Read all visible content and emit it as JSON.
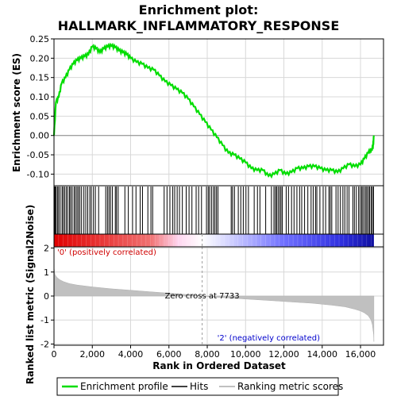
{
  "chart_data": {
    "type": "line",
    "title_line1": "Enrichment plot:",
    "title_line2": "HALLMARK_INFLAMMATORY_RESPONSE",
    "xlabel": "Rank in Ordered Dataset",
    "x_range": [
      0,
      17200
    ],
    "x_ticks": [
      0,
      2000,
      4000,
      6000,
      8000,
      10000,
      12000,
      14000,
      16000
    ],
    "x_tick_labels": [
      "0",
      "2,000",
      "4,000",
      "6,000",
      "8,000",
      "10,000",
      "12,000",
      "14,000",
      "16,000"
    ],
    "n_genes": 16700,
    "grid": true,
    "es_panel": {
      "ylabel": "Enrichment score (ES)",
      "ylim": [
        -0.13,
        0.25
      ],
      "y_ticks": [
        -0.1,
        -0.05,
        0.0,
        0.05,
        0.1,
        0.15,
        0.2,
        0.25
      ],
      "y_tick_labels": [
        "-0.10",
        "-0.05",
        "0.00",
        "0.05",
        "0.10",
        "0.15",
        "0.20",
        "0.25"
      ],
      "series": [
        {
          "name": "Enrichment profile",
          "color": "#00dd00",
          "x": [
            0,
            100,
            250,
            400,
            600,
            800,
            1000,
            1200,
            1400,
            1600,
            1800,
            2000,
            2200,
            2400,
            2600,
            2800,
            3000,
            3200,
            3400,
            3600,
            3800,
            4000,
            4300,
            4600,
            4900,
            5200,
            5500,
            5800,
            6100,
            6400,
            6700,
            7000,
            7300,
            7600,
            7900,
            8200,
            8500,
            8800,
            9100,
            9400,
            9700,
            10000,
            10300,
            10600,
            10900,
            11200,
            11500,
            11800,
            12100,
            12400,
            12700,
            13000,
            13300,
            13600,
            13900,
            14200,
            14500,
            14800,
            15100,
            15400,
            15700,
            16000,
            16200,
            16400,
            16550,
            16650,
            16700
          ],
          "values": [
            0.0,
            0.085,
            0.1,
            0.135,
            0.15,
            0.17,
            0.185,
            0.195,
            0.2,
            0.205,
            0.21,
            0.23,
            0.225,
            0.215,
            0.225,
            0.23,
            0.232,
            0.228,
            0.22,
            0.215,
            0.21,
            0.2,
            0.19,
            0.185,
            0.175,
            0.17,
            0.155,
            0.14,
            0.13,
            0.12,
            0.11,
            0.095,
            0.075,
            0.055,
            0.035,
            0.015,
            -0.005,
            -0.025,
            -0.045,
            -0.05,
            -0.06,
            -0.07,
            -0.085,
            -0.09,
            -0.09,
            -0.105,
            -0.1,
            -0.09,
            -0.1,
            -0.095,
            -0.085,
            -0.085,
            -0.08,
            -0.08,
            -0.085,
            -0.09,
            -0.09,
            -0.095,
            -0.085,
            -0.075,
            -0.08,
            -0.075,
            -0.06,
            -0.045,
            -0.04,
            -0.03,
            0.0
          ]
        }
      ]
    },
    "hits_panel": {
      "hit_ranks": [
        20,
        60,
        110,
        180,
        240,
        320,
        420,
        480,
        560,
        640,
        720,
        810,
        870,
        950,
        1050,
        1120,
        1200,
        1270,
        1350,
        1440,
        1560,
        1660,
        1760,
        1870,
        1950,
        2060,
        2160,
        2330,
        2700,
        2790,
        2870,
        2950,
        3050,
        3200,
        3260,
        3350,
        3700,
        3880,
        4100,
        4280,
        4500,
        4620,
        4900,
        5060,
        5150,
        5750,
        5900,
        6050,
        6200,
        6300,
        6430,
        6550,
        6700,
        6900,
        7050,
        7200,
        7420,
        7550,
        7700,
        7960,
        8050,
        8120,
        8220,
        8320,
        8400,
        8480,
        8560,
        9250,
        9320,
        9420,
        9620,
        9750,
        9880,
        10020,
        10150,
        10450,
        10620,
        10750,
        11050,
        11350,
        11480,
        11560,
        11620,
        11700,
        11780,
        11850,
        11920,
        12120,
        12240,
        12400,
        12530,
        12680,
        12820,
        12930,
        13080,
        13250,
        13420,
        13530,
        13650,
        13720,
        13880,
        14050,
        14180,
        14350,
        14420,
        14500,
        14720,
        14830,
        14950,
        15080,
        15180,
        15300,
        15400,
        15600,
        15680,
        15780,
        15900,
        15980,
        16060,
        16120,
        16200,
        16280,
        16340,
        16420,
        16480,
        16560,
        16620,
        16680
      ]
    },
    "metric_panel": {
      "ylabel": "Ranked list metric (Signal2Noise)",
      "ylim": [
        -2.05,
        2.05
      ],
      "y_ticks": [
        -2,
        -1,
        0,
        1,
        2
      ],
      "y_tick_labels": [
        "-2",
        "-1",
        "0",
        "1",
        "2"
      ],
      "zero_cross_rank": 7733,
      "zero_cross_label": "Zero cross at 7733",
      "positive_label": "'0' (positively correlated)",
      "negative_label": "'2' (negatively correlated)",
      "metric_x": [
        0,
        50,
        150,
        300,
        500,
        800,
        1200,
        2000,
        3000,
        4000,
        5000,
        6000,
        7000,
        7733,
        8500,
        9500,
        10500,
        11500,
        12500,
        13500,
        14500,
        15200,
        15700,
        16000,
        16200,
        16400,
        16550,
        16620,
        16680,
        16700
      ],
      "metric_values": [
        1.2,
        0.9,
        0.78,
        0.68,
        0.6,
        0.52,
        0.46,
        0.38,
        0.3,
        0.24,
        0.18,
        0.12,
        0.06,
        0.0,
        -0.05,
        -0.1,
        -0.15,
        -0.2,
        -0.25,
        -0.3,
        -0.38,
        -0.45,
        -0.55,
        -0.62,
        -0.7,
        -0.82,
        -1.0,
        -1.2,
        -1.6,
        -1.9
      ]
    },
    "heat_band": {
      "stops": [
        "#e00000",
        "#f07070",
        "#ffd6f0",
        "#ffffff",
        "#d8d8ff",
        "#7070ff",
        "#3030e0",
        "#1010a0"
      ],
      "stop_ranks": [
        0,
        5000,
        6500,
        7733,
        9000,
        12000,
        15000,
        16700
      ]
    },
    "legend": [
      {
        "label": "Enrichment profile",
        "color": "#00dd00"
      },
      {
        "label": "Hits",
        "color": "#000000"
      },
      {
        "label": "Ranking metric scores",
        "color": "#c0c0c0"
      }
    ]
  }
}
